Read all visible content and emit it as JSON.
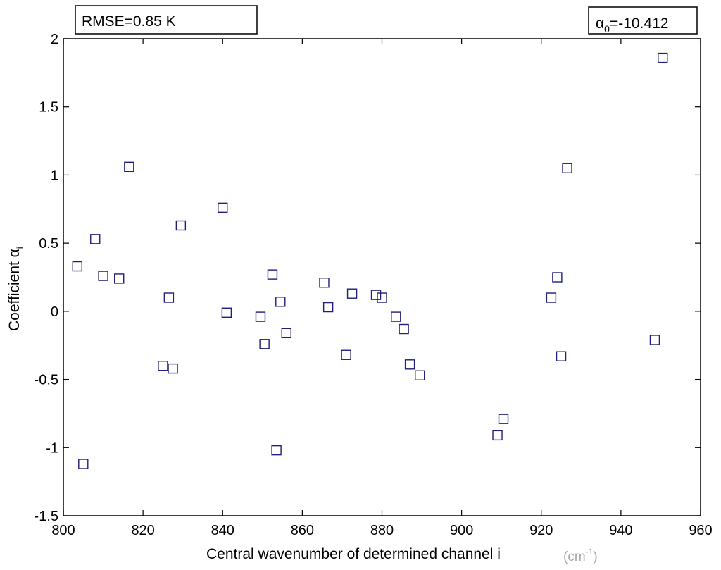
{
  "chart_data": {
    "type": "scatter",
    "title": "",
    "xlabel": "Central wavenumber of determined channel i",
    "xunit": "(cm",
    "xunit_exp": "-1",
    "xunit_close": ")",
    "ylabel": "Coefficient α",
    "ylabel_sub": "i",
    "xlim": [
      800,
      960
    ],
    "ylim": [
      -1.5,
      2
    ],
    "xticks": [
      800,
      820,
      840,
      860,
      880,
      900,
      920,
      940,
      960
    ],
    "yticks": [
      -1.5,
      -1,
      -0.5,
      0,
      0.5,
      1,
      1.5,
      2
    ],
    "xtick_labels": [
      "800",
      "820",
      "840",
      "860",
      "880",
      "900",
      "920",
      "940",
      "960"
    ],
    "ytick_labels": [
      "-1.5",
      "-1",
      "-0.5",
      "0",
      "0.5",
      "1",
      "1.5",
      "2"
    ],
    "grid": false,
    "marker": "square",
    "marker_color": "#1f1f7a",
    "annotations": {
      "rmse": "RMSE=0.85 K",
      "alpha0_prefix": "α",
      "alpha0_sub": "0",
      "alpha0_value": "=-10.412"
    },
    "points": [
      {
        "x": 803.5,
        "y": 0.33
      },
      {
        "x": 805.0,
        "y": -1.12
      },
      {
        "x": 808.0,
        "y": 0.53
      },
      {
        "x": 810.0,
        "y": 0.26
      },
      {
        "x": 814.0,
        "y": 0.24
      },
      {
        "x": 816.5,
        "y": 1.06
      },
      {
        "x": 825.0,
        "y": -0.4
      },
      {
        "x": 826.5,
        "y": 0.1
      },
      {
        "x": 827.5,
        "y": -0.42
      },
      {
        "x": 829.5,
        "y": 0.63
      },
      {
        "x": 840.0,
        "y": 0.76
      },
      {
        "x": 841.0,
        "y": -0.01
      },
      {
        "x": 849.5,
        "y": -0.04
      },
      {
        "x": 850.5,
        "y": -0.24
      },
      {
        "x": 852.5,
        "y": 0.27
      },
      {
        "x": 853.5,
        "y": -1.02
      },
      {
        "x": 854.5,
        "y": 0.07
      },
      {
        "x": 856.0,
        "y": -0.16
      },
      {
        "x": 865.5,
        "y": 0.21
      },
      {
        "x": 866.5,
        "y": 0.03
      },
      {
        "x": 871.0,
        "y": -0.32
      },
      {
        "x": 872.5,
        "y": 0.13
      },
      {
        "x": 878.5,
        "y": 0.12
      },
      {
        "x": 880.0,
        "y": 0.1
      },
      {
        "x": 883.5,
        "y": -0.04
      },
      {
        "x": 885.5,
        "y": -0.13
      },
      {
        "x": 887.0,
        "y": -0.39
      },
      {
        "x": 889.5,
        "y": -0.47
      },
      {
        "x": 909.0,
        "y": -0.91
      },
      {
        "x": 910.5,
        "y": -0.79
      },
      {
        "x": 922.5,
        "y": 0.1
      },
      {
        "x": 924.0,
        "y": 0.25
      },
      {
        "x": 925.0,
        "y": -0.33
      },
      {
        "x": 926.5,
        "y": 1.05
      },
      {
        "x": 948.5,
        "y": -0.21
      },
      {
        "x": 950.5,
        "y": 1.86
      }
    ]
  }
}
